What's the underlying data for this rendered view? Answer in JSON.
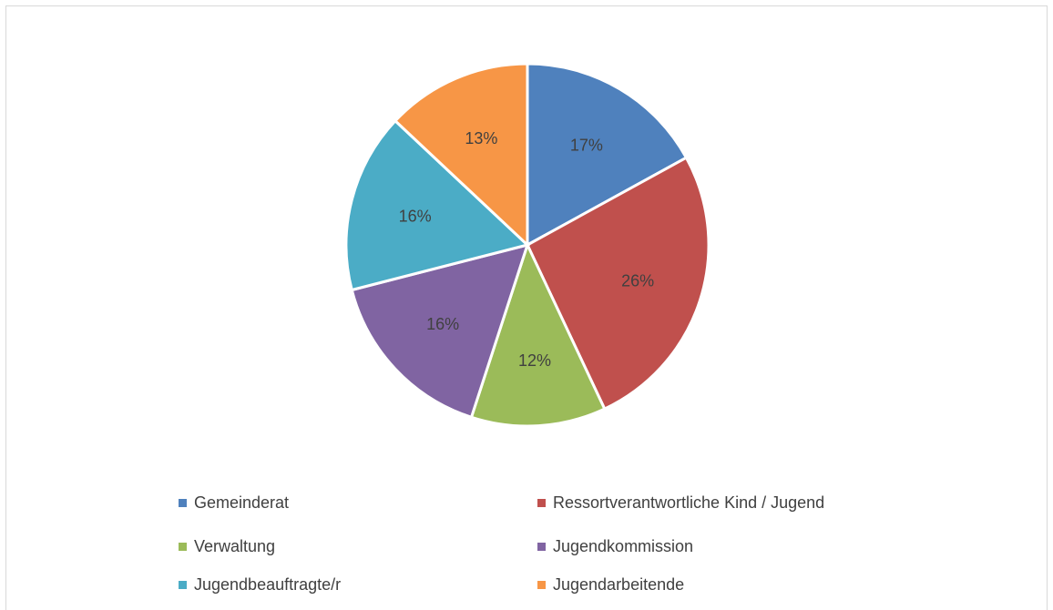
{
  "chart_data": {
    "type": "pie",
    "categories": [
      "Gemeinderat",
      "Ressortverantwortliche Kind / Jugend",
      "Verwaltung",
      "Jugendkommission",
      "Jugendbeauftragte/r",
      "Jugendarbeitende"
    ],
    "values": [
      17,
      26,
      12,
      16,
      16,
      13
    ],
    "labels": [
      "17%",
      "26%",
      "12%",
      "16%",
      "16%",
      "13%"
    ],
    "colors": [
      "#4f81bd",
      "#c0504d",
      "#9bbb59",
      "#8064a2",
      "#4bacc6",
      "#f79646"
    ],
    "title": "",
    "legend_position": "bottom"
  }
}
